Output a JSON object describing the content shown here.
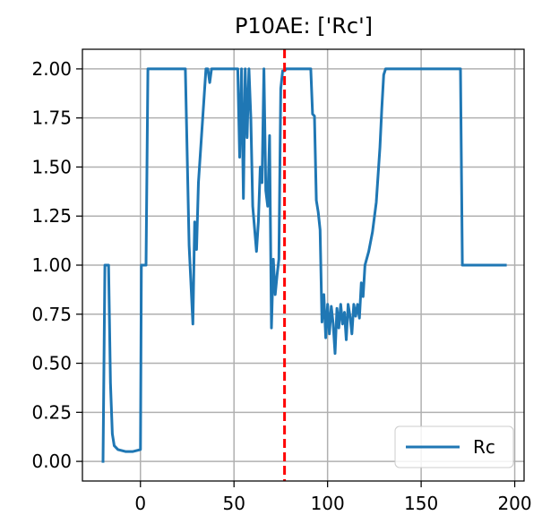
{
  "chart_data": {
    "type": "line",
    "title": "P10AE: ['Rc']",
    "xlabel": "",
    "ylabel": "",
    "xlim": [
      -31,
      205
    ],
    "ylim": [
      -0.1,
      2.1
    ],
    "xticks": [
      0,
      50,
      100,
      150,
      200
    ],
    "xtick_labels": [
      "0",
      "50",
      "100",
      "150",
      "200"
    ],
    "yticks": [
      0.0,
      0.25,
      0.5,
      0.75,
      1.0,
      1.25,
      1.5,
      1.75,
      2.0
    ],
    "ytick_labels": [
      "0.00",
      "0.25",
      "0.50",
      "0.75",
      "1.00",
      "1.25",
      "1.50",
      "1.75",
      "2.00"
    ],
    "grid": true,
    "legend_position": "lower right",
    "colors": {
      "series": "#1f77b4",
      "vline": "#ff0000",
      "grid": "#b0b0b0"
    },
    "series": [
      {
        "name": "Rc",
        "x": [
          -20,
          -19,
          -17,
          -16,
          -15,
          -14,
          -12,
          -8,
          -4,
          0,
          0.5,
          3,
          4,
          24,
          26,
          28,
          29,
          30,
          31,
          35,
          36,
          37,
          38,
          52,
          53,
          54,
          55,
          56,
          57,
          58,
          59,
          60,
          62,
          63,
          64,
          65,
          66,
          67,
          68,
          69,
          70,
          71,
          72,
          73,
          74,
          75,
          76,
          77,
          78,
          91,
          92,
          93,
          94,
          95,
          96,
          97,
          98,
          99,
          100,
          101,
          102,
          103,
          104,
          105,
          106,
          107,
          108,
          109,
          110,
          111,
          112,
          113,
          114,
          115,
          116,
          117,
          118,
          119,
          120,
          122,
          124,
          126,
          128,
          129,
          130,
          131,
          171,
          172,
          195
        ],
        "y": [
          0.0,
          1.0,
          1.0,
          0.4,
          0.14,
          0.08,
          0.06,
          0.05,
          0.05,
          0.06,
          1.0,
          1.0,
          2.0,
          2.0,
          1.1,
          0.7,
          1.22,
          1.08,
          1.42,
          2.0,
          2.0,
          1.93,
          2.0,
          2.0,
          1.55,
          2.0,
          1.34,
          2.0,
          1.65,
          2.0,
          1.75,
          1.3,
          1.07,
          1.22,
          1.5,
          1.42,
          2.0,
          1.38,
          1.3,
          1.66,
          0.68,
          1.03,
          0.85,
          0.95,
          1.03,
          1.9,
          1.99,
          1.99,
          2.0,
          2.0,
          1.77,
          1.76,
          1.33,
          1.27,
          1.18,
          0.71,
          0.85,
          0.63,
          0.8,
          0.65,
          0.79,
          0.7,
          0.55,
          0.78,
          0.68,
          0.8,
          0.7,
          0.76,
          0.62,
          0.8,
          0.74,
          0.65,
          0.8,
          0.74,
          0.8,
          0.73,
          0.91,
          0.84,
          1.0,
          1.07,
          1.17,
          1.32,
          1.6,
          1.8,
          1.97,
          2.0,
          2.0,
          1.0,
          1.0
        ]
      }
    ],
    "vlines": [
      {
        "x": 77,
        "style": "dashed"
      }
    ]
  }
}
